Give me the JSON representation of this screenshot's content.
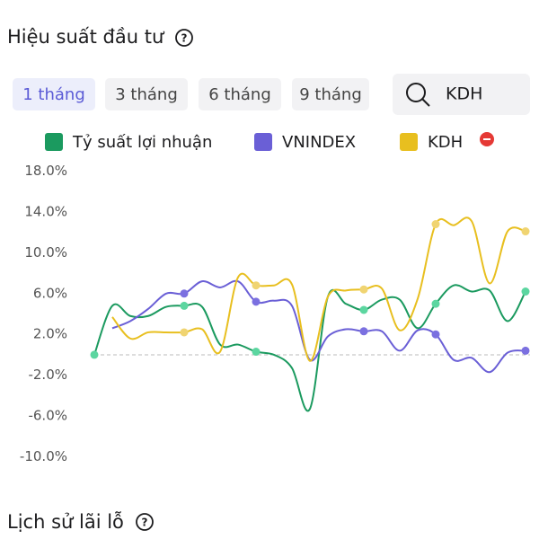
{
  "header": {
    "title": "Hiệu suất đầu tư"
  },
  "tabs": [
    "1 tháng",
    "3 tháng",
    "6 tháng",
    "9 tháng"
  ],
  "search": "KDH",
  "chart_data": {
    "type": "line",
    "categories": [
      null,
      null,
      null,
      null,
      null,
      null,
      null,
      null,
      null,
      null,
      null,
      null,
      null,
      null,
      null,
      null,
      null,
      null,
      null,
      null,
      null,
      null,
      null,
      null,
      null
    ],
    "series": [
      {
        "name": "Tỷ suất lợi nhuận",
        "color": "#1b9a5f",
        "values": [
          0,
          4.8,
          3.8,
          3.8,
          4.7,
          4.8,
          4.7,
          1.0,
          1.0,
          0.3,
          0,
          -1.3,
          -5.3,
          5.7,
          5.0,
          4.4,
          5.4,
          5.4,
          2.6,
          5.0,
          6.8,
          6.2,
          6.3,
          3.3,
          6.2
        ]
      },
      {
        "name": "VNINDEX",
        "color": "#6a5fd6",
        "values": [
          null,
          2.6,
          3.3,
          4.5,
          6.0,
          6.0,
          7.2,
          6.6,
          7.2,
          5.2,
          5.3,
          4.8,
          -0.5,
          1.8,
          2.5,
          2.3,
          2.3,
          0.4,
          2.4,
          2.0,
          -0.5,
          -0.3,
          -1.7,
          0.2,
          0.4
        ]
      },
      {
        "name": "KDH",
        "color": "#e8bf1f",
        "values": [
          null,
          3.7,
          1.6,
          2.2,
          2.2,
          2.2,
          2.5,
          0.3,
          7.6,
          6.8,
          6.8,
          6.9,
          -0.6,
          5.7,
          6.3,
          6.4,
          6.5,
          2.4,
          5.5,
          12.8,
          12.7,
          13.1,
          7.0,
          12.1,
          12.1
        ]
      }
    ],
    "ylim": [
      -10,
      18
    ],
    "yticks": [
      {
        "value": 18,
        "label": "18.0%"
      },
      {
        "value": 14,
        "label": "14.0%"
      },
      {
        "value": 10,
        "label": "10.0%"
      },
      {
        "value": 6,
        "label": "6.0%"
      },
      {
        "value": 2,
        "label": "2.0%"
      },
      {
        "value": -2,
        "label": "-2.0%"
      },
      {
        "value": -6,
        "label": "-6.0%"
      },
      {
        "value": -10,
        "label": "-10.0%"
      }
    ]
  },
  "history_title": "Lịch sử lãi lỗ"
}
